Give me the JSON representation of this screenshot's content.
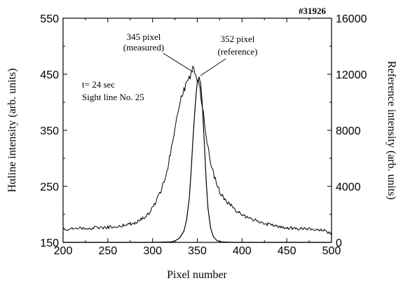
{
  "chart_data": {
    "type": "line",
    "shot_label": "#31926",
    "xlabel": "Pixel number",
    "ylabel_left_prefix": "Hα",
    "ylabel_left_rest": "line intensity (arb. units)",
    "ylabel_right": "Reference intensity (arb. units)",
    "xlim": [
      200,
      500
    ],
    "ylim_left": [
      150,
      550
    ],
    "ylim_right": [
      0,
      16000
    ],
    "x_ticks": [
      "200",
      "250",
      "300",
      "350",
      "400",
      "450",
      "500"
    ],
    "y_left_ticks": [
      "150",
      "250",
      "350",
      "450",
      "550"
    ],
    "y_right_ticks": [
      "0",
      "4000",
      "8000",
      "12000",
      "16000"
    ],
    "annotations": {
      "time": "t= 24 sec",
      "sightline": "Sight line No. 25",
      "measured_line1": "345 pixel",
      "measured_line2": "(measured)",
      "reference_line1": "352 pixel",
      "reference_line2": "(reference)"
    },
    "series": [
      {
        "axis": "left",
        "x": [
          200,
          220,
          240,
          260,
          270,
          280,
          290,
          295,
          300,
          305,
          310,
          315,
          320,
          325,
          330,
          335,
          340,
          343,
          345,
          348,
          350,
          352,
          355,
          358,
          360,
          365,
          370,
          375,
          380,
          390,
          400,
          410,
          420,
          430,
          440,
          450,
          460,
          470,
          480,
          490,
          500
        ],
        "y": [
          173,
          175,
          176,
          178,
          181,
          185,
          193,
          199,
          211,
          226,
          244,
          268,
          310,
          355,
          398,
          420,
          438,
          452,
          460,
          452,
          440,
          430,
          400,
          365,
          335,
          293,
          262,
          241,
          228,
          212,
          199,
          192,
          186,
          182,
          179,
          176,
          175,
          174,
          173,
          172,
          166
        ]
      },
      {
        "axis": "right",
        "x": [
          200,
          300,
          320,
          325,
          330,
          335,
          338,
          341,
          343,
          345,
          347,
          349,
          350,
          352,
          354,
          356,
          358,
          360,
          362,
          365,
          368,
          372,
          378,
          390,
          500
        ],
        "y": [
          0,
          0,
          30,
          100,
          300,
          800,
          1600,
          3100,
          5000,
          7200,
          9200,
          10800,
          11400,
          11800,
          11200,
          9400,
          6900,
          4300,
          2400,
          1000,
          400,
          120,
          30,
          0,
          0
        ]
      }
    ]
  }
}
